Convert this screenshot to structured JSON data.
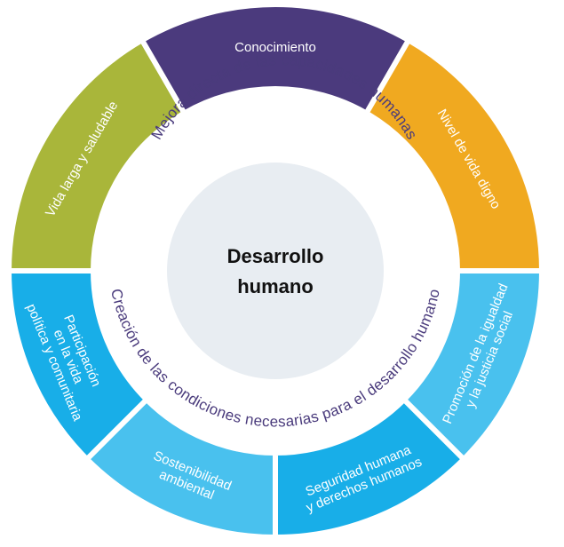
{
  "center": {
    "line1": "Desarrollo",
    "line2": "humano"
  },
  "inner_ring": {
    "top_text": "Mejora directa de las capacidades humanas",
    "bottom_text": "Creación de las condiciones necesarias para el desarrollo humano"
  },
  "top_segments": [
    {
      "label": "Vida larga y saludable",
      "color": "#a9b63a"
    },
    {
      "label": "Conocimiento",
      "color": "#4b3a7d"
    },
    {
      "label": "Nivel de vida digno",
      "color": "#f0a920"
    }
  ],
  "bottom_segments": [
    {
      "lines": [
        "Participación",
        "en la vida",
        "política y comunitaria"
      ],
      "color": "#18aee8"
    },
    {
      "lines": [
        "Sostenibilidad",
        "ambiental"
      ],
      "color": "#49c1ee"
    },
    {
      "lines": [
        "Seguridad humana",
        "y derechos humanos"
      ],
      "color": "#18aee8"
    },
    {
      "lines": [
        "Promoción de la igualdad",
        "y la justicia social"
      ],
      "color": "#49c1ee"
    }
  ],
  "colors": {
    "center_fill": "#e8edf2",
    "ring_text": "#4a3b7c"
  }
}
